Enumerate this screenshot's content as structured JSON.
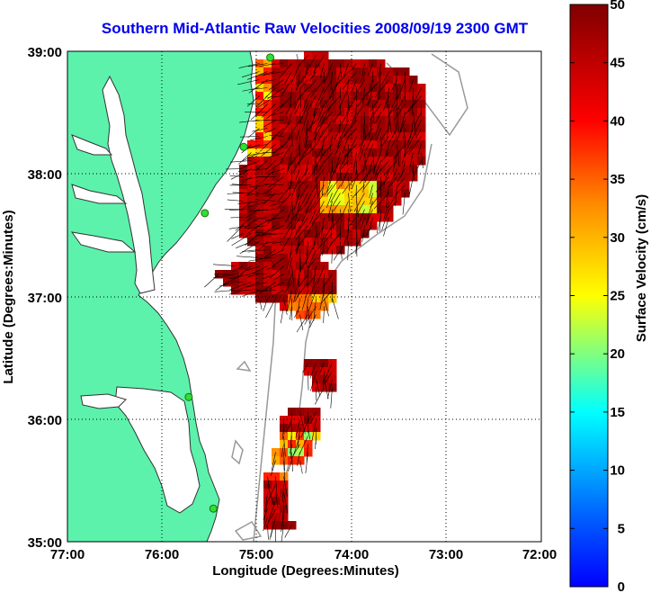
{
  "title": "Southern Mid-Atlantic Raw Velocities 2008/09/19 2300 GMT",
  "map": {
    "xlabel": "Longitude (Degrees:Minutes)",
    "ylabel": "Latitude (Degrees:Minutes)",
    "x_ticks": [
      "77:00",
      "76:00",
      "75:00",
      "74:00",
      "73:00",
      "72:00"
    ],
    "y_ticks": [
      "39:00",
      "38:00",
      "37:00",
      "36:00",
      "35:00"
    ],
    "lon_range": [
      -77,
      -72
    ],
    "lat_range": [
      35,
      39
    ],
    "grid": "dotted",
    "land_color": "#5cf2ac",
    "station_color": "#33dd33",
    "station_markers": [
      {
        "lon": -74.86,
        "lat": 38.95
      },
      {
        "lon": -75.14,
        "lat": 38.22
      },
      {
        "lon": -75.55,
        "lat": 37.68
      },
      {
        "lon": -75.72,
        "lat": 36.18
      },
      {
        "lon": -75.46,
        "lat": 35.27
      }
    ]
  },
  "colorbar": {
    "label": "Surface Velocity (cm/s)",
    "min": 0,
    "max": 50,
    "ticks": [
      "50",
      "45",
      "40",
      "35",
      "30",
      "25",
      "20",
      "15",
      "10",
      "5",
      "0"
    ],
    "colormap": "jet"
  }
}
